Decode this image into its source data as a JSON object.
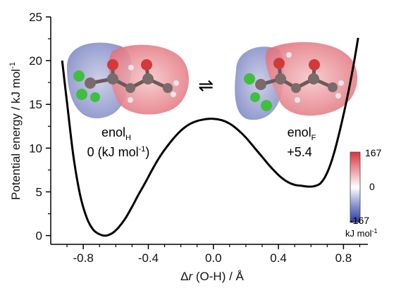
{
  "chart_data": {
    "type": "line",
    "xlabel": "Δr (O-H) / Å",
    "ylabel": "Potential energy / kJ mol-1",
    "xlim": [
      -1.0,
      0.95
    ],
    "ylim": [
      -1.0,
      25.0
    ],
    "xticks": [
      -0.8,
      -0.4,
      0.0,
      0.4,
      0.8
    ],
    "xtick_labels": [
      "-0.8",
      "-0.4",
      "0.0",
      "0.4",
      "0.8"
    ],
    "yticks": [
      0,
      5,
      10,
      15,
      20,
      25
    ],
    "ytick_labels": [
      "0",
      "5",
      "10",
      "15",
      "20",
      "25"
    ],
    "grid": false,
    "series": [
      {
        "x": [
          -0.93,
          -0.9,
          -0.86,
          -0.82,
          -0.78,
          -0.74,
          -0.7,
          -0.66,
          -0.62,
          -0.58,
          -0.54,
          -0.5,
          -0.46,
          -0.42,
          -0.38,
          -0.34,
          -0.3,
          -0.25,
          -0.2,
          -0.15,
          -0.1,
          -0.05,
          0.0,
          0.05,
          0.1,
          0.15,
          0.2,
          0.25,
          0.3,
          0.34,
          0.38,
          0.42,
          0.46,
          0.5,
          0.54,
          0.58,
          0.62,
          0.66,
          0.7,
          0.74,
          0.78,
          0.82,
          0.86,
          0.89
        ],
        "y": [
          20.0,
          15.2,
          9.0,
          4.7,
          2.1,
          0.7,
          0.15,
          0.0,
          0.3,
          1.0,
          2.0,
          3.3,
          4.7,
          6.0,
          7.4,
          8.7,
          9.8,
          11.0,
          12.0,
          12.7,
          13.1,
          13.3,
          13.35,
          13.2,
          12.8,
          12.1,
          11.2,
          10.1,
          9.0,
          8.1,
          7.3,
          6.6,
          6.1,
          5.8,
          5.7,
          5.6,
          5.65,
          6.0,
          7.2,
          9.3,
          12.2,
          15.5,
          19.3,
          22.6
        ]
      }
    ]
  },
  "annotations": {
    "left_name": "enol",
    "left_sub": "H",
    "left_value": "0 (kJ mol",
    "left_value_sup": "-1",
    "left_value_end": ")",
    "right_name": "enol",
    "right_sub": "F",
    "right_value": "+5.4",
    "equilibrium": "⇌"
  },
  "colorbar": {
    "max_label": "167",
    "mid_label": "0",
    "min_label": "-167",
    "unit": "kJ mol",
    "unit_sup": "-1",
    "colors": [
      "#2a3b9a",
      "#ffffff",
      "#d9343f"
    ]
  },
  "y_title_main": "Potential energy / kJ mol",
  "y_title_sup": "-1",
  "x_title_delta": "Δ",
  "x_title_r": "r",
  "x_title_rest": " (O-H) / Å"
}
